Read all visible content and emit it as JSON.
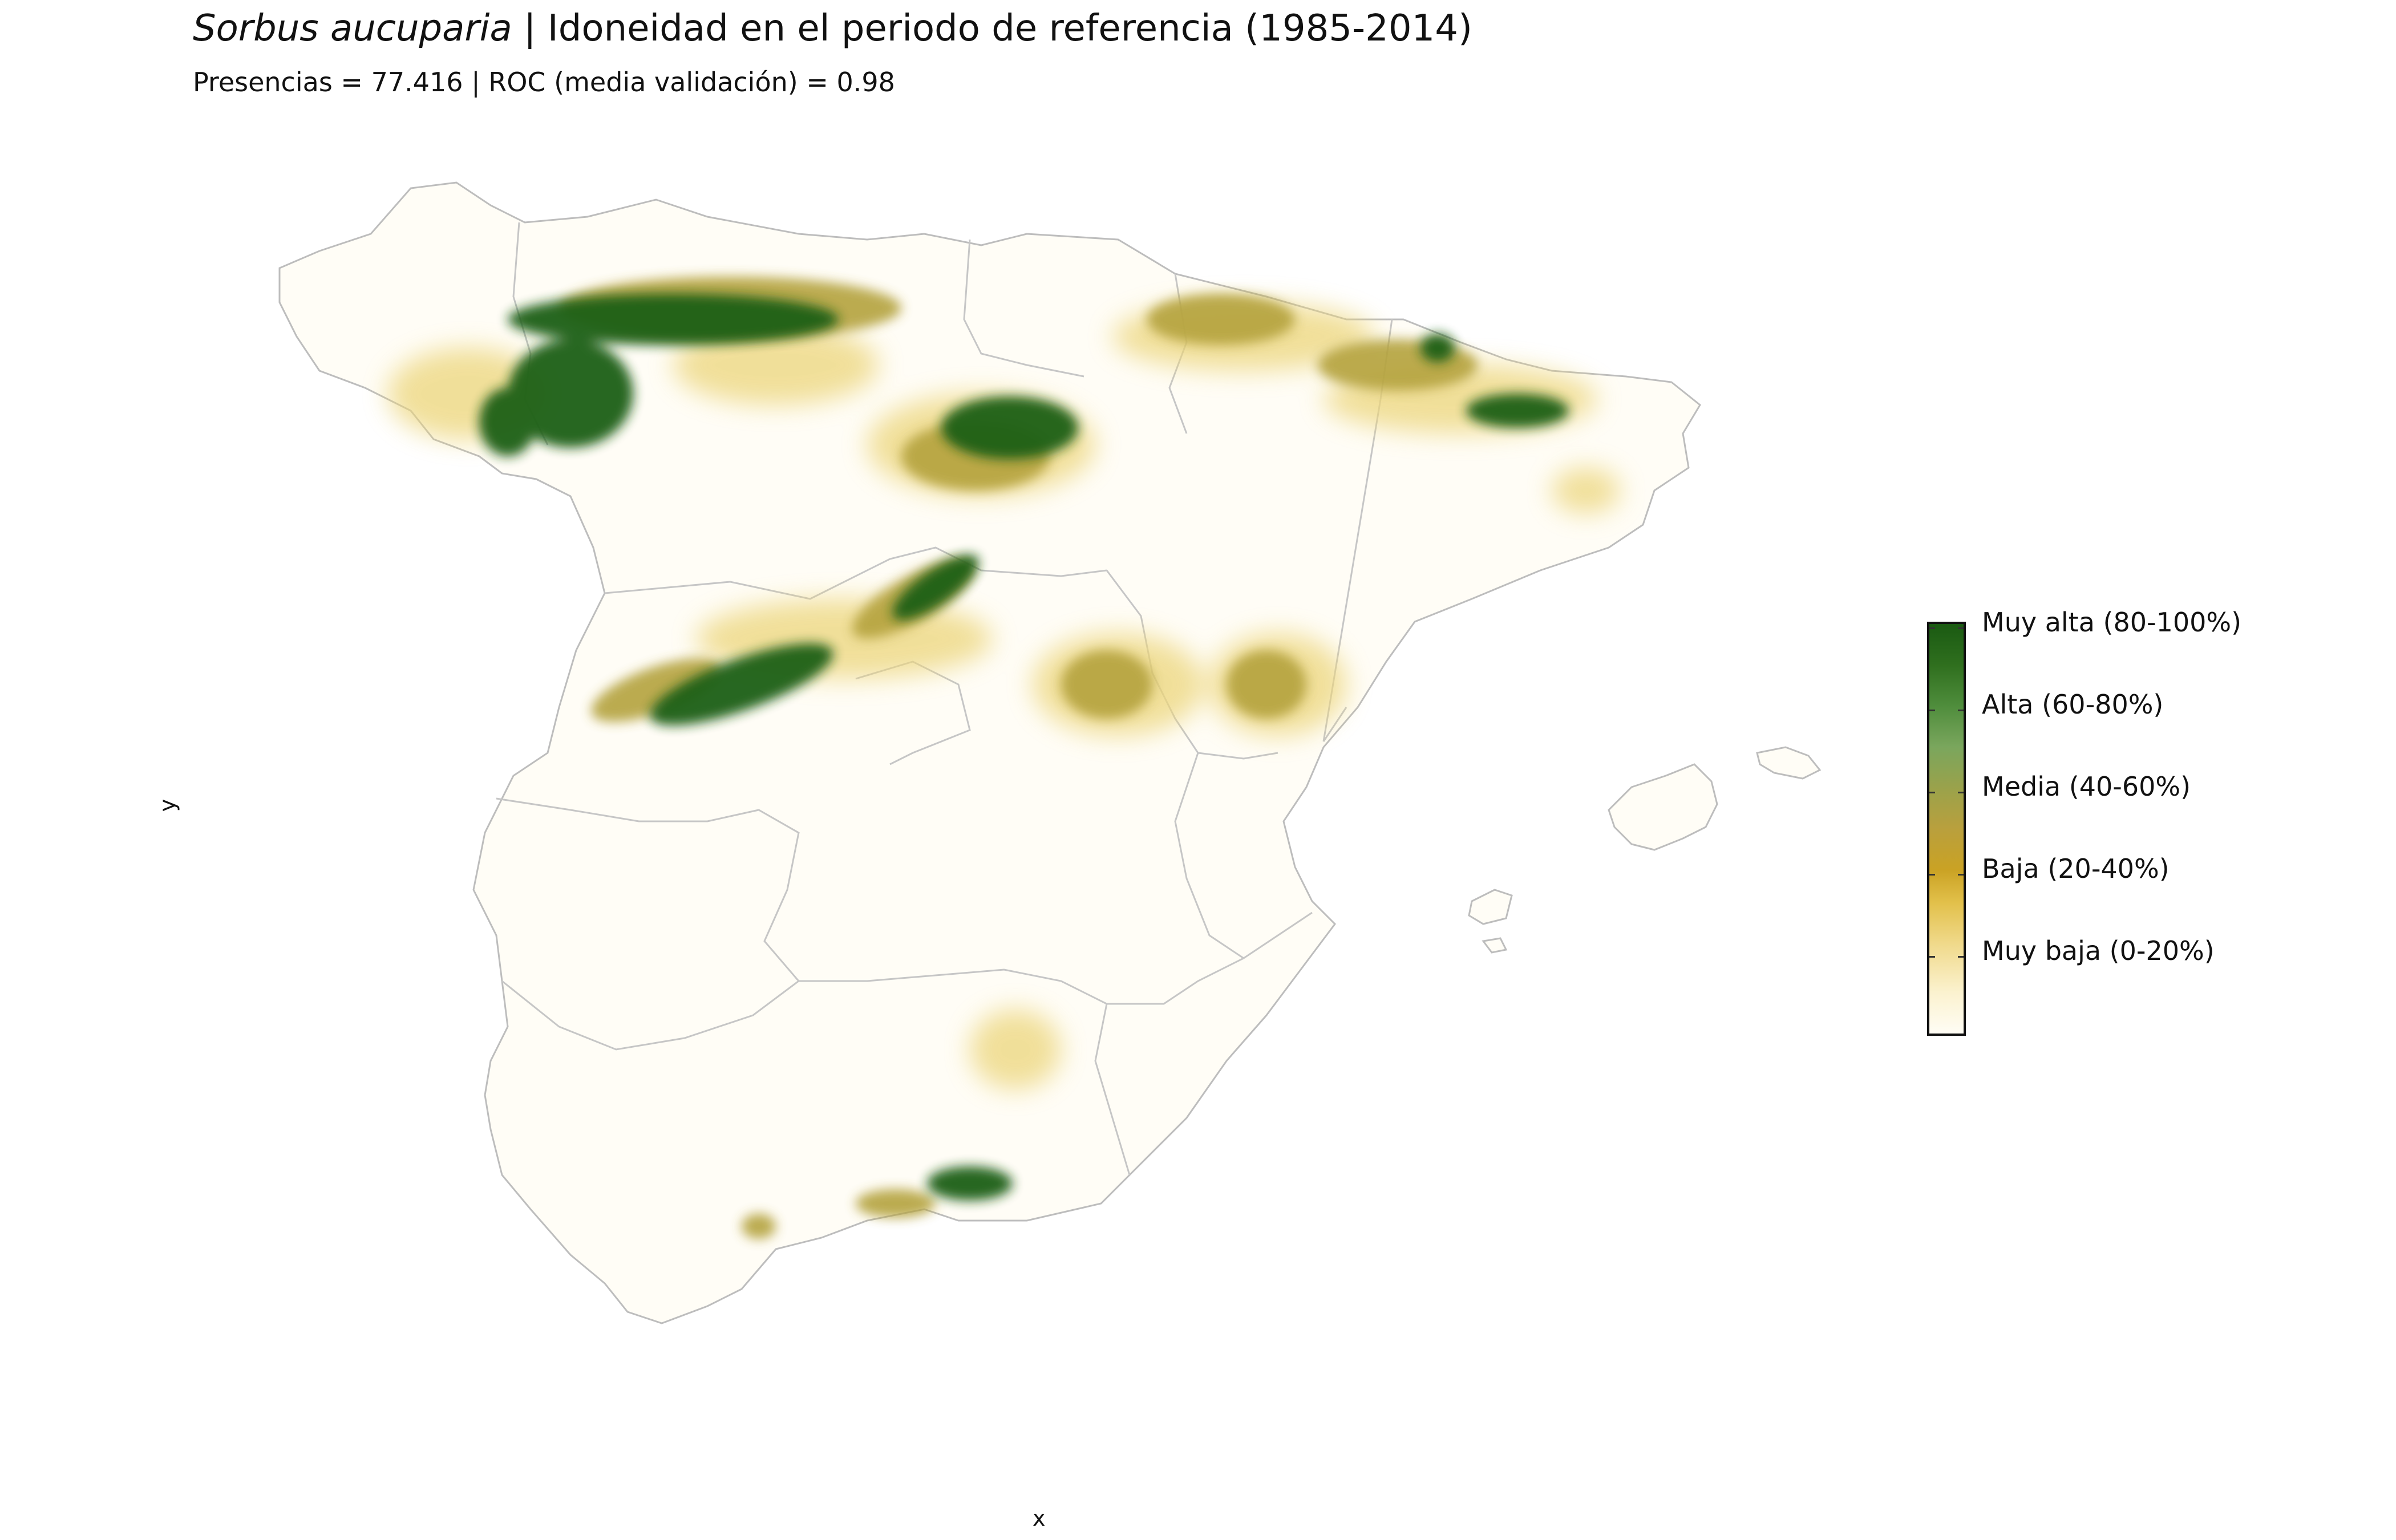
{
  "title": {
    "species": "Sorbus aucuparia",
    "text": " | Idoneidad en el periodo de referencia (1985-2014)"
  },
  "subtitle": "Presencias = 77.416  |  ROC (media validación) = 0.98",
  "axes": {
    "x_label": "x",
    "y_label": "y"
  },
  "legend": {
    "items": [
      {
        "label": "Muy alta (80-100%)",
        "color": "#1a5a12"
      },
      {
        "label": "Alta (60-80%)",
        "color": "#7aa65d"
      },
      {
        "label": "Media (40-60%)",
        "color": "#b9a03d"
      },
      {
        "label": "Baja (20-40%)",
        "color": "#caa224"
      },
      {
        "label": "Muy baja (0-20%)",
        "color": "#f0d98a"
      }
    ]
  },
  "colors": {
    "background_land": "#fffdf6",
    "border": "#bdbdbd",
    "very_high": "#1a5a12",
    "high": "#3f7f2a",
    "medium": "#a7a23e",
    "low": "#d9b23a",
    "very_low": "#f3e3a6"
  }
}
